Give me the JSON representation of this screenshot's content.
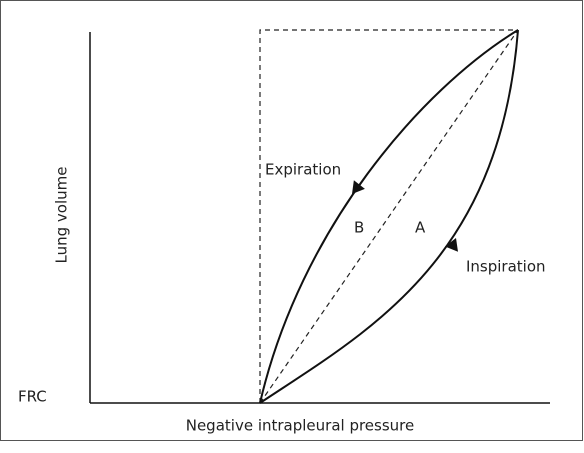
{
  "title": null,
  "axes": {
    "y_label": "Lung volume",
    "x_label": "Negative intrapleural pressure",
    "origin_label": "FRC"
  },
  "curves": {
    "expiration": "Expiration",
    "inspiration": "Inspiration"
  },
  "regions": {
    "a": "A",
    "b": "B"
  }
}
